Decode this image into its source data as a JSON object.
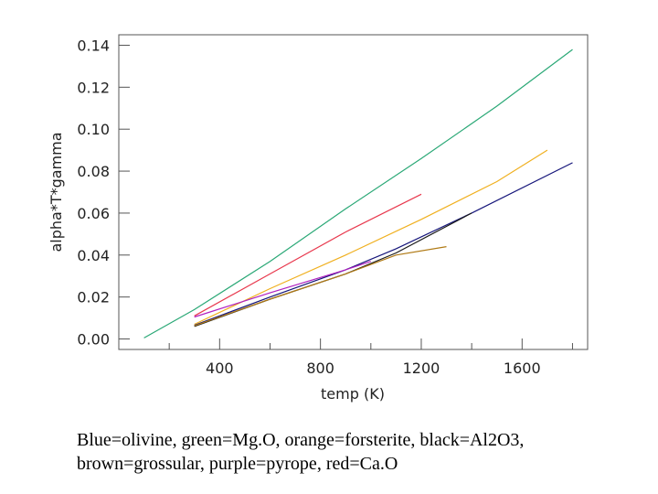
{
  "caption": {
    "line1": "Blue=olivine, green=Mg.O, orange=forsterite, black=Al2O3,",
    "line2": "brown=grossular, purple=pyrope, red=Ca.O"
  },
  "chart_data": {
    "type": "line",
    "xlabel": "temp (K)",
    "ylabel": "alpha*T*gamma",
    "xlim": [
      0,
      1860
    ],
    "ylim": [
      -0.005,
      0.145
    ],
    "xticks": [
      400,
      800,
      1200,
      1600
    ],
    "xtick_labels": [
      "400",
      "800",
      "1200",
      "1600"
    ],
    "x_minor_ticks": [
      200,
      600,
      1000,
      1400,
      1800
    ],
    "yticks": [
      0.0,
      0.02,
      0.04,
      0.06,
      0.08,
      0.1,
      0.12,
      0.14
    ],
    "ytick_labels": [
      "0.00",
      "0.02",
      "0.04",
      "0.06",
      "0.08",
      "0.10",
      "0.12",
      "0.14"
    ],
    "grid": false,
    "series": [
      {
        "color": "#2aa876",
        "x": [
          100,
          300,
          600,
          900,
          1200,
          1500,
          1800
        ],
        "y": [
          0.0005,
          0.014,
          0.037,
          0.062,
          0.086,
          0.111,
          0.138
        ]
      },
      {
        "color": "#e8384d",
        "x": [
          300,
          600,
          900,
          1200
        ],
        "y": [
          0.011,
          0.031,
          0.051,
          0.069
        ]
      },
      {
        "color": "#f0b020",
        "x": [
          300,
          600,
          900,
          1200,
          1500,
          1700
        ],
        "y": [
          0.007,
          0.024,
          0.04,
          0.057,
          0.075,
          0.09
        ]
      },
      {
        "color": "#15157a",
        "x": [
          300,
          600,
          900,
          1100,
          1400,
          1800
        ],
        "y": [
          0.0065,
          0.02,
          0.033,
          0.043,
          0.06,
          0.084
        ]
      },
      {
        "color": "#1a1a1a",
        "x": [
          300,
          600,
          900,
          1100,
          1400
        ],
        "y": [
          0.006,
          0.019,
          0.031,
          0.041,
          0.06
        ]
      },
      {
        "color": "#b07a15",
        "x": [
          300,
          600,
          900,
          1100,
          1300
        ],
        "y": [
          0.0063,
          0.019,
          0.031,
          0.04,
          0.044
        ]
      },
      {
        "color": "#b020c0",
        "x": [
          300,
          600,
          900,
          1000
        ],
        "y": [
          0.0105,
          0.022,
          0.033,
          0.037
        ]
      }
    ]
  }
}
